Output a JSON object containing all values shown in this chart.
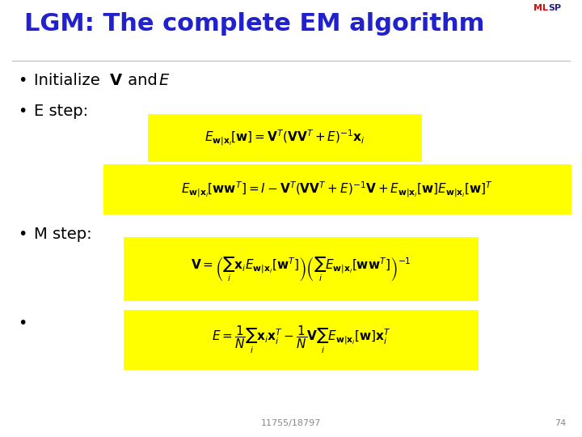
{
  "title": "LGM: The complete EM algorithm",
  "title_color": "#2222CC",
  "title_fontsize": 22,
  "background_color": "#FFFFFF",
  "bullet_color": "#000000",
  "bullet_fontsize": 14,
  "eq_bg_color": "#FFFF00",
  "footer_text": "11755/18797",
  "footer_page": "74",
  "eq1_str": "$E_{\\mathbf{w}|\\mathbf{x}_i}[\\mathbf{w}] = \\mathbf{V}^T(\\mathbf{V}\\mathbf{V}^T + E)^{-1}\\mathbf{x}_i$",
  "eq2_str": "$E_{\\mathbf{w}|\\mathbf{x}_i}[\\mathbf{w}\\mathbf{w}^T] = I - \\mathbf{V}^T(\\mathbf{V}\\mathbf{V}^T + E)^{-1}\\mathbf{V} + E_{\\mathbf{w}|\\mathbf{x}_i}[\\mathbf{w}]E_{\\mathbf{w}|\\mathbf{x}_i}[\\mathbf{w}]^T$",
  "eq3_str": "$\\mathbf{V} = \\left(\\sum_i \\mathbf{x}_i E_{\\mathbf{w}|\\mathbf{x}_i}[\\mathbf{w}^T]\\right)\\left(\\sum_i E_{\\mathbf{w}|\\mathbf{x}_i}[\\mathbf{w}\\mathbf{w}^T]\\right)^{-1}$",
  "eq4_str": "$E = \\dfrac{1}{N}\\sum_i \\mathbf{x}_i\\mathbf{x}_i^T - \\dfrac{1}{N}\\mathbf{V}\\sum_i E_{\\mathbf{w}|\\mathbf{x}_i}[\\mathbf{w}]\\mathbf{x}_i^T$"
}
